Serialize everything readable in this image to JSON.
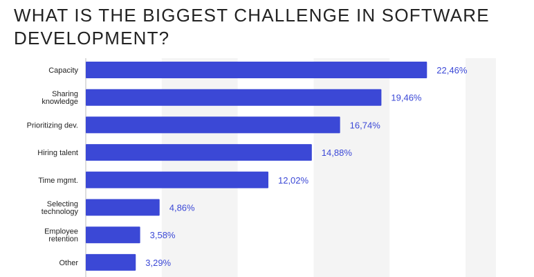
{
  "chart_data": {
    "type": "bar",
    "orientation": "horizontal",
    "title": "WHAT IS THE BIGGEST CHALLENGE IN SOFTWARE DEVELOPMENT?",
    "categories": [
      [
        "Capacity"
      ],
      [
        "Sharing",
        "knowledge"
      ],
      [
        "Prioritizing dev."
      ],
      [
        "Hiring talent"
      ],
      [
        "Time mgmt."
      ],
      [
        "Selecting",
        "technology"
      ],
      [
        "Employee",
        "retention"
      ],
      [
        "Other"
      ]
    ],
    "values": [
      22.46,
      19.46,
      16.74,
      14.88,
      12.02,
      4.86,
      3.58,
      3.29
    ],
    "value_labels": [
      "22,46%",
      "19,46%",
      "16,74%",
      "14,88%",
      "12,02%",
      "4,86%",
      "3,58%",
      "3,29%"
    ],
    "xlim": [
      0,
      27
    ],
    "grid": "alternating vertical bands",
    "bar_color": "#3b48d6",
    "label_color": "#3b48d6",
    "band_color": "#f4f4f4",
    "axis_color": "#bbbbbb"
  }
}
